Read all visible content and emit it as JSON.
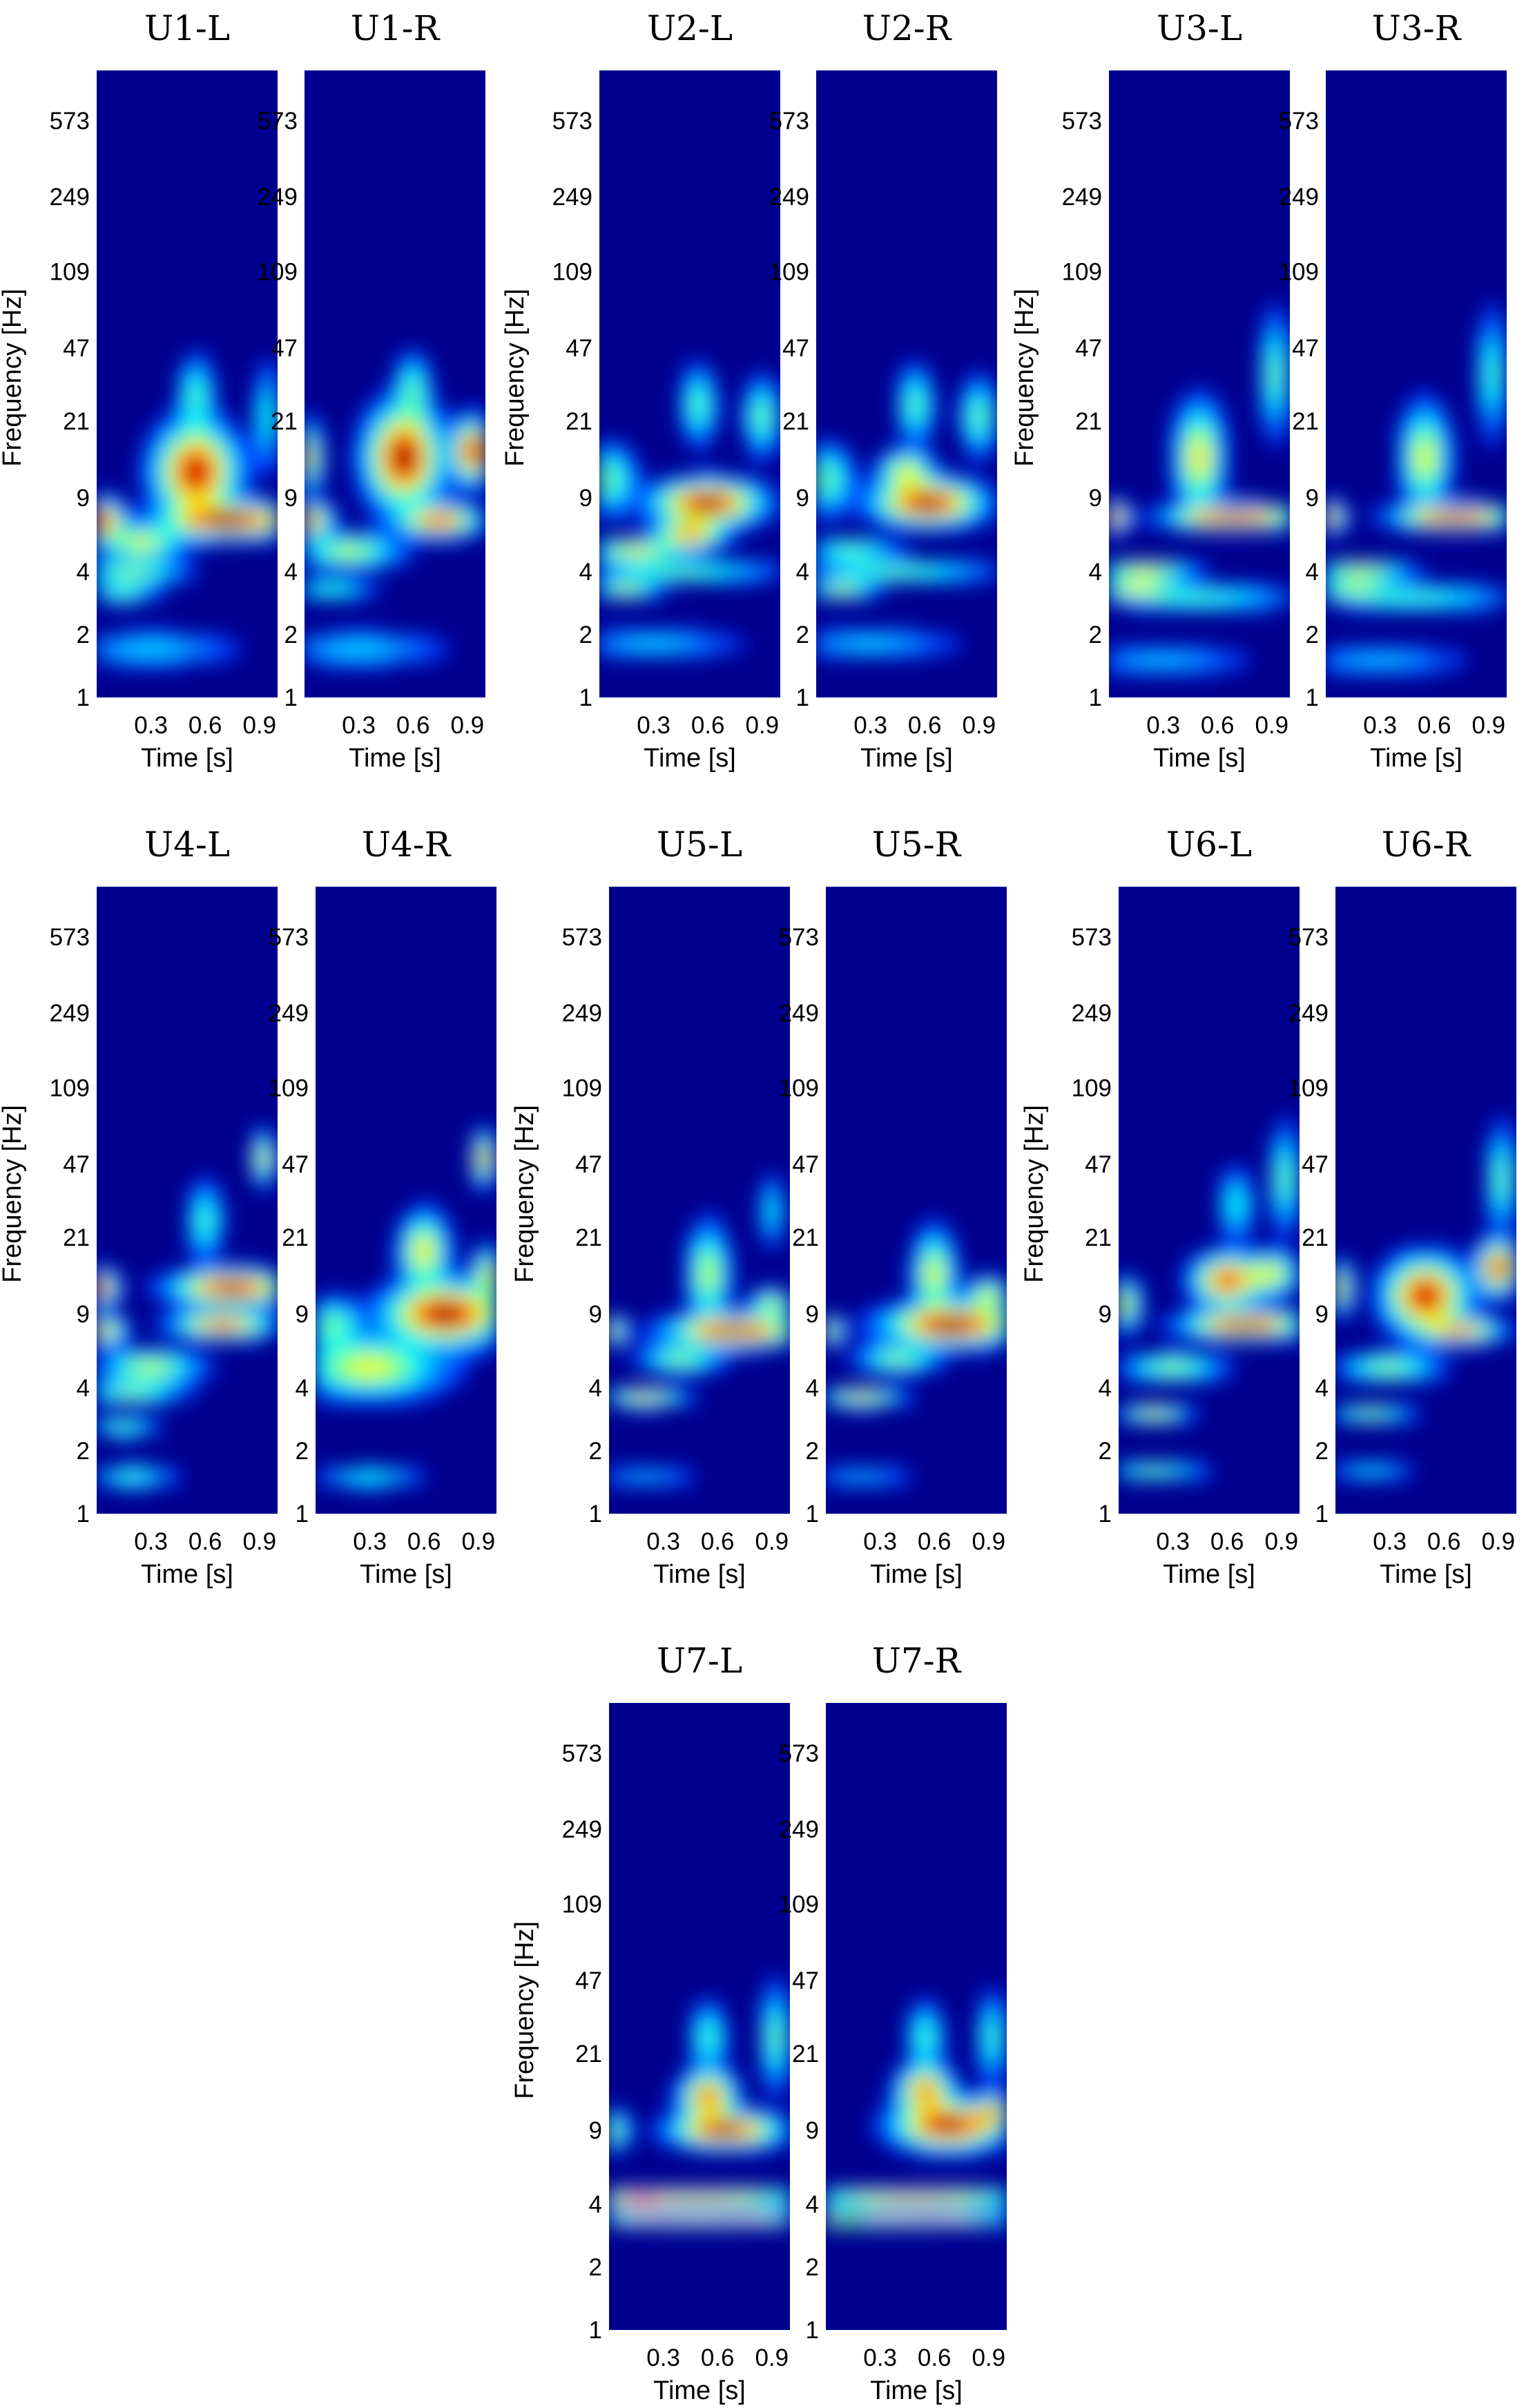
{
  "chart_data": {
    "type": "heatmap",
    "description_kind": "time-frequency spectrograms",
    "colormap": "jet",
    "background_color": "#00008f",
    "hot_color": "#800000",
    "xlabel": "Time [s]",
    "ylabel": "Frequency [Hz]",
    "xticks": [
      0.3,
      0.6,
      0.9
    ],
    "xlim": [
      0,
      1.0
    ],
    "yticks": [
      1,
      2,
      4,
      9,
      21,
      47,
      109,
      249,
      573
    ],
    "ylim": [
      1,
      1000
    ],
    "yscale": "log",
    "panels": [
      {
        "title": "U1-L",
        "blobs": [
          {
            "t": 0.55,
            "f": 12,
            "st": 0.12,
            "sf": 0.28,
            "a": 0.95
          },
          {
            "t": 0.75,
            "f": 7,
            "st": 0.2,
            "sf": 0.1,
            "a": 1.0
          },
          {
            "t": 0.04,
            "f": 7,
            "st": 0.06,
            "sf": 0.12,
            "a": 0.85
          },
          {
            "t": 0.25,
            "f": 5.5,
            "st": 0.12,
            "sf": 0.1,
            "a": 0.55
          },
          {
            "t": 0.2,
            "f": 4,
            "st": 0.16,
            "sf": 0.07,
            "a": 0.45
          },
          {
            "t": 0.15,
            "f": 3.2,
            "st": 0.1,
            "sf": 0.06,
            "a": 0.4
          },
          {
            "t": 0.55,
            "f": 28,
            "st": 0.05,
            "sf": 0.22,
            "a": 0.35
          },
          {
            "t": 0.95,
            "f": 22,
            "st": 0.04,
            "sf": 0.3,
            "a": 0.3
          },
          {
            "t": 0.3,
            "f": 1.7,
            "st": 0.25,
            "sf": 0.1,
            "a": 0.22
          }
        ]
      },
      {
        "title": "U1-R",
        "blobs": [
          {
            "t": 0.55,
            "f": 14,
            "st": 0.11,
            "sf": 0.3,
            "a": 1.0
          },
          {
            "t": 0.75,
            "f": 7,
            "st": 0.12,
            "sf": 0.09,
            "a": 0.85
          },
          {
            "t": 0.93,
            "f": 15,
            "st": 0.06,
            "sf": 0.18,
            "a": 0.95
          },
          {
            "t": 0.02,
            "f": 14,
            "st": 0.04,
            "sf": 0.2,
            "a": 0.6
          },
          {
            "t": 0.04,
            "f": 7,
            "st": 0.06,
            "sf": 0.1,
            "a": 0.75
          },
          {
            "t": 0.25,
            "f": 5,
            "st": 0.15,
            "sf": 0.1,
            "a": 0.5
          },
          {
            "t": 0.15,
            "f": 3.3,
            "st": 0.12,
            "sf": 0.06,
            "a": 0.35
          },
          {
            "t": 0.6,
            "f": 30,
            "st": 0.05,
            "sf": 0.2,
            "a": 0.35
          },
          {
            "t": 0.3,
            "f": 1.7,
            "st": 0.25,
            "sf": 0.1,
            "a": 0.22
          }
        ]
      },
      {
        "title": "U2-L",
        "blobs": [
          {
            "t": 0.6,
            "f": 8.5,
            "st": 0.16,
            "sf": 0.13,
            "a": 1.0
          },
          {
            "t": 0.5,
            "f": 6,
            "st": 0.1,
            "sf": 0.09,
            "a": 0.75
          },
          {
            "t": 0.2,
            "f": 5,
            "st": 0.14,
            "sf": 0.07,
            "a": 0.6
          },
          {
            "t": 0.15,
            "f": 3.3,
            "st": 0.1,
            "sf": 0.05,
            "a": 0.55
          },
          {
            "t": 0.45,
            "f": 4,
            "st": 0.3,
            "sf": 0.06,
            "a": 0.4
          },
          {
            "t": 0.55,
            "f": 25,
            "st": 0.05,
            "sf": 0.22,
            "a": 0.38
          },
          {
            "t": 0.9,
            "f": 22,
            "st": 0.05,
            "sf": 0.22,
            "a": 0.4
          },
          {
            "t": 0.05,
            "f": 11,
            "st": 0.08,
            "sf": 0.2,
            "a": 0.4
          },
          {
            "t": 0.3,
            "f": 1.8,
            "st": 0.25,
            "sf": 0.08,
            "a": 0.22
          }
        ]
      },
      {
        "title": "U2-R",
        "blobs": [
          {
            "t": 0.62,
            "f": 8.5,
            "st": 0.16,
            "sf": 0.13,
            "a": 1.0
          },
          {
            "t": 0.5,
            "f": 12,
            "st": 0.08,
            "sf": 0.12,
            "a": 0.55
          },
          {
            "t": 0.15,
            "f": 3.3,
            "st": 0.1,
            "sf": 0.05,
            "a": 0.55
          },
          {
            "t": 0.45,
            "f": 4,
            "st": 0.3,
            "sf": 0.06,
            "a": 0.4
          },
          {
            "t": 0.2,
            "f": 5,
            "st": 0.14,
            "sf": 0.07,
            "a": 0.4
          },
          {
            "t": 0.55,
            "f": 25,
            "st": 0.05,
            "sf": 0.22,
            "a": 0.38
          },
          {
            "t": 0.9,
            "f": 22,
            "st": 0.05,
            "sf": 0.22,
            "a": 0.4
          },
          {
            "t": 0.05,
            "f": 11,
            "st": 0.08,
            "sf": 0.2,
            "a": 0.4
          },
          {
            "t": 0.3,
            "f": 1.8,
            "st": 0.25,
            "sf": 0.08,
            "a": 0.22
          }
        ]
      },
      {
        "title": "U3-L",
        "blobs": [
          {
            "t": 0.7,
            "f": 7.3,
            "st": 0.2,
            "sf": 0.07,
            "a": 1.0
          },
          {
            "t": 0.5,
            "f": 14,
            "st": 0.07,
            "sf": 0.32,
            "a": 0.6
          },
          {
            "t": 0.03,
            "f": 7.3,
            "st": 0.04,
            "sf": 0.08,
            "a": 0.85
          },
          {
            "t": 0.2,
            "f": 4,
            "st": 0.15,
            "sf": 0.06,
            "a": 0.6
          },
          {
            "t": 0.15,
            "f": 3.3,
            "st": 0.12,
            "sf": 0.05,
            "a": 0.55
          },
          {
            "t": 0.5,
            "f": 3,
            "st": 0.3,
            "sf": 0.07,
            "a": 0.35
          },
          {
            "t": 0.92,
            "f": 35,
            "st": 0.04,
            "sf": 0.35,
            "a": 0.4
          },
          {
            "t": 0.3,
            "f": 1.5,
            "st": 0.25,
            "sf": 0.08,
            "a": 0.2
          }
        ]
      },
      {
        "title": "U3-R",
        "blobs": [
          {
            "t": 0.72,
            "f": 7.3,
            "st": 0.18,
            "sf": 0.07,
            "a": 1.0
          },
          {
            "t": 0.55,
            "f": 14,
            "st": 0.07,
            "sf": 0.3,
            "a": 0.55
          },
          {
            "t": 0.03,
            "f": 7.3,
            "st": 0.04,
            "sf": 0.08,
            "a": 0.75
          },
          {
            "t": 0.2,
            "f": 4,
            "st": 0.15,
            "sf": 0.06,
            "a": 0.55
          },
          {
            "t": 0.15,
            "f": 3.3,
            "st": 0.12,
            "sf": 0.05,
            "a": 0.45
          },
          {
            "t": 0.5,
            "f": 3,
            "st": 0.3,
            "sf": 0.07,
            "a": 0.35
          },
          {
            "t": 0.92,
            "f": 35,
            "st": 0.04,
            "sf": 0.35,
            "a": 0.35
          },
          {
            "t": 0.3,
            "f": 1.5,
            "st": 0.25,
            "sf": 0.08,
            "a": 0.2
          }
        ]
      },
      {
        "title": "U4-L",
        "blobs": [
          {
            "t": 0.75,
            "f": 12,
            "st": 0.18,
            "sf": 0.1,
            "a": 0.95
          },
          {
            "t": 0.7,
            "f": 8,
            "st": 0.15,
            "sf": 0.08,
            "a": 0.8
          },
          {
            "t": 0.02,
            "f": 12,
            "st": 0.05,
            "sf": 0.1,
            "a": 0.9
          },
          {
            "t": 0.05,
            "f": 7.5,
            "st": 0.06,
            "sf": 0.08,
            "a": 0.65
          },
          {
            "t": 0.3,
            "f": 5,
            "st": 0.15,
            "sf": 0.1,
            "a": 0.5
          },
          {
            "t": 0.2,
            "f": 3.8,
            "st": 0.15,
            "sf": 0.06,
            "a": 0.45
          },
          {
            "t": 0.15,
            "f": 2.6,
            "st": 0.1,
            "sf": 0.05,
            "a": 0.4
          },
          {
            "t": 0.92,
            "f": 50,
            "st": 0.03,
            "sf": 0.15,
            "a": 0.6
          },
          {
            "t": 0.6,
            "f": 25,
            "st": 0.05,
            "sf": 0.22,
            "a": 0.35
          },
          {
            "t": 0.2,
            "f": 1.5,
            "st": 0.12,
            "sf": 0.06,
            "a": 0.35
          }
        ]
      },
      {
        "title": "U4-R",
        "blobs": [
          {
            "t": 0.72,
            "f": 9,
            "st": 0.18,
            "sf": 0.18,
            "a": 1.0
          },
          {
            "t": 0.6,
            "f": 18,
            "st": 0.07,
            "sf": 0.22,
            "a": 0.6
          },
          {
            "t": 0.3,
            "f": 5,
            "st": 0.22,
            "sf": 0.18,
            "a": 0.55
          },
          {
            "t": 0.1,
            "f": 8,
            "st": 0.08,
            "sf": 0.15,
            "a": 0.4
          },
          {
            "t": 0.93,
            "f": 50,
            "st": 0.03,
            "sf": 0.15,
            "a": 0.75
          },
          {
            "t": 0.95,
            "f": 14,
            "st": 0.04,
            "sf": 0.15,
            "a": 0.55
          },
          {
            "t": 0.3,
            "f": 1.5,
            "st": 0.15,
            "sf": 0.06,
            "a": 0.3
          }
        ]
      },
      {
        "title": "U5-L",
        "blobs": [
          {
            "t": 0.7,
            "f": 7.5,
            "st": 0.2,
            "sf": 0.09,
            "a": 1.0
          },
          {
            "t": 0.55,
            "f": 14,
            "st": 0.06,
            "sf": 0.28,
            "a": 0.5
          },
          {
            "t": 0.02,
            "f": 7.5,
            "st": 0.04,
            "sf": 0.08,
            "a": 0.6
          },
          {
            "t": 0.2,
            "f": 3.6,
            "st": 0.12,
            "sf": 0.05,
            "a": 0.65
          },
          {
            "t": 0.4,
            "f": 5.5,
            "st": 0.12,
            "sf": 0.08,
            "a": 0.45
          },
          {
            "t": 0.9,
            "f": 28,
            "st": 0.03,
            "sf": 0.2,
            "a": 0.3
          },
          {
            "t": 0.9,
            "f": 10,
            "st": 0.06,
            "sf": 0.08,
            "a": 0.55
          },
          {
            "t": 0.2,
            "f": 1.5,
            "st": 0.15,
            "sf": 0.06,
            "a": 0.18
          }
        ]
      },
      {
        "title": "U5-R",
        "blobs": [
          {
            "t": 0.7,
            "f": 8,
            "st": 0.2,
            "sf": 0.12,
            "a": 1.0
          },
          {
            "t": 0.6,
            "f": 14,
            "st": 0.06,
            "sf": 0.25,
            "a": 0.55
          },
          {
            "t": 0.02,
            "f": 7.5,
            "st": 0.04,
            "sf": 0.08,
            "a": 0.6
          },
          {
            "t": 0.2,
            "f": 3.6,
            "st": 0.12,
            "sf": 0.05,
            "a": 0.65
          },
          {
            "t": 0.4,
            "f": 5.5,
            "st": 0.12,
            "sf": 0.08,
            "a": 0.45
          },
          {
            "t": 0.9,
            "f": 11,
            "st": 0.06,
            "sf": 0.1,
            "a": 0.55
          },
          {
            "t": 0.2,
            "f": 1.5,
            "st": 0.15,
            "sf": 0.06,
            "a": 0.18
          }
        ]
      },
      {
        "title": "U6-L",
        "blobs": [
          {
            "t": 0.7,
            "f": 8,
            "st": 0.18,
            "sf": 0.08,
            "a": 1.0
          },
          {
            "t": 0.6,
            "f": 13,
            "st": 0.1,
            "sf": 0.15,
            "a": 0.85
          },
          {
            "t": 0.85,
            "f": 14,
            "st": 0.08,
            "sf": 0.12,
            "a": 0.55
          },
          {
            "t": 0.03,
            "f": 10,
            "st": 0.05,
            "sf": 0.15,
            "a": 0.55
          },
          {
            "t": 0.3,
            "f": 5,
            "st": 0.15,
            "sf": 0.08,
            "a": 0.45
          },
          {
            "t": 0.2,
            "f": 3,
            "st": 0.1,
            "sf": 0.05,
            "a": 0.6
          },
          {
            "t": 0.92,
            "f": 40,
            "st": 0.04,
            "sf": 0.3,
            "a": 0.4
          },
          {
            "t": 0.65,
            "f": 30,
            "st": 0.05,
            "sf": 0.2,
            "a": 0.3
          },
          {
            "t": 0.2,
            "f": 1.6,
            "st": 0.15,
            "sf": 0.05,
            "a": 0.4
          }
        ]
      },
      {
        "title": "U6-R",
        "blobs": [
          {
            "t": 0.5,
            "f": 11,
            "st": 0.12,
            "sf": 0.22,
            "a": 0.95
          },
          {
            "t": 0.7,
            "f": 7.5,
            "st": 0.12,
            "sf": 0.07,
            "a": 0.75
          },
          {
            "t": 0.9,
            "f": 15,
            "st": 0.06,
            "sf": 0.15,
            "a": 0.95
          },
          {
            "t": 0.02,
            "f": 12,
            "st": 0.04,
            "sf": 0.15,
            "a": 0.6
          },
          {
            "t": 0.3,
            "f": 5,
            "st": 0.15,
            "sf": 0.08,
            "a": 0.45
          },
          {
            "t": 0.2,
            "f": 3,
            "st": 0.12,
            "sf": 0.05,
            "a": 0.45
          },
          {
            "t": 0.92,
            "f": 40,
            "st": 0.04,
            "sf": 0.3,
            "a": 0.4
          },
          {
            "t": 0.2,
            "f": 1.6,
            "st": 0.12,
            "sf": 0.05,
            "a": 0.25
          }
        ]
      },
      {
        "title": "U7-L",
        "blobs": [
          {
            "t": 0.65,
            "f": 9,
            "st": 0.16,
            "sf": 0.1,
            "a": 1.0
          },
          {
            "t": 0.55,
            "f": 13,
            "st": 0.08,
            "sf": 0.15,
            "a": 0.8
          },
          {
            "t": 0.5,
            "f": 4.3,
            "st": 0.4,
            "sf": 0.05,
            "a": 0.7
          },
          {
            "t": 0.5,
            "f": 3.4,
            "st": 0.4,
            "sf": 0.04,
            "a": 0.8
          },
          {
            "t": 0.15,
            "f": 4.2,
            "st": 0.1,
            "sf": 0.04,
            "a": 0.4
          },
          {
            "t": 0.55,
            "f": 25,
            "st": 0.05,
            "sf": 0.2,
            "a": 0.35
          },
          {
            "t": 0.92,
            "f": 25,
            "st": 0.04,
            "sf": 0.3,
            "a": 0.4
          },
          {
            "t": 0.02,
            "f": 9,
            "st": 0.05,
            "sf": 0.12,
            "a": 0.45
          }
        ]
      },
      {
        "title": "U7-R",
        "blobs": [
          {
            "t": 0.68,
            "f": 9.5,
            "st": 0.16,
            "sf": 0.14,
            "a": 1.0
          },
          {
            "t": 0.55,
            "f": 14,
            "st": 0.08,
            "sf": 0.14,
            "a": 0.75
          },
          {
            "t": 0.92,
            "f": 11,
            "st": 0.05,
            "sf": 0.1,
            "a": 0.55
          },
          {
            "t": 0.5,
            "f": 4.3,
            "st": 0.4,
            "sf": 0.05,
            "a": 0.7
          },
          {
            "t": 0.4,
            "f": 3.4,
            "st": 0.4,
            "sf": 0.04,
            "a": 0.8
          },
          {
            "t": 0.1,
            "f": 3.4,
            "st": 0.08,
            "sf": 0.04,
            "a": 0.55
          },
          {
            "t": 0.55,
            "f": 25,
            "st": 0.05,
            "sf": 0.2,
            "a": 0.35
          },
          {
            "t": 0.92,
            "f": 25,
            "st": 0.04,
            "sf": 0.25,
            "a": 0.35
          }
        ]
      }
    ]
  }
}
